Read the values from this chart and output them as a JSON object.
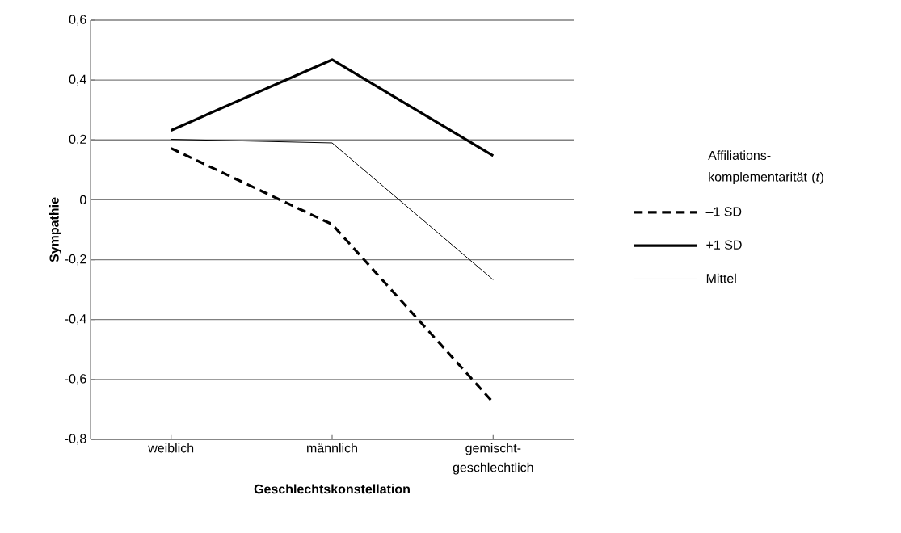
{
  "chart_data": {
    "type": "line",
    "categories": [
      "weiblich",
      "männlich",
      "gemischt-geschlechtlich"
    ],
    "series": [
      {
        "name": "–1 SD",
        "color": "#000000",
        "line_style": "dashed",
        "values": [
          0.172,
          -0.082,
          -0.677
        ]
      },
      {
        "name": "+1 SD",
        "color": "#000000",
        "line_style": "solid",
        "values": [
          0.232,
          0.468,
          0.147
        ]
      },
      {
        "name": "Mittel",
        "color": "#000000",
        "line_style": "solid",
        "values": [
          0.202,
          0.19,
          -0.267
        ]
      }
    ],
    "xlabel": "Geschlechtskonstellation",
    "ylabel": "Sympathie",
    "legend_title": "Affiliations-komplementarität (*t*)",
    "ylim": [
      -0.8,
      0.6
    ],
    "yticks": [
      {
        "value": -0.8,
        "label": "-0,8"
      },
      {
        "value": -0.6,
        "label": "-0,6"
      },
      {
        "value": -0.4,
        "label": "-0,4"
      },
      {
        "value": -0.2,
        "label": "-0,2"
      },
      {
        "value": 0,
        "label": "0"
      },
      {
        "value": 0.2,
        "label": "0,2"
      },
      {
        "value": 0.4,
        "label": "0,4"
      },
      {
        "value": 0.6,
        "label": "0,6"
      }
    ],
    "grid": "y",
    "legend": "right",
    "marker": "none"
  }
}
